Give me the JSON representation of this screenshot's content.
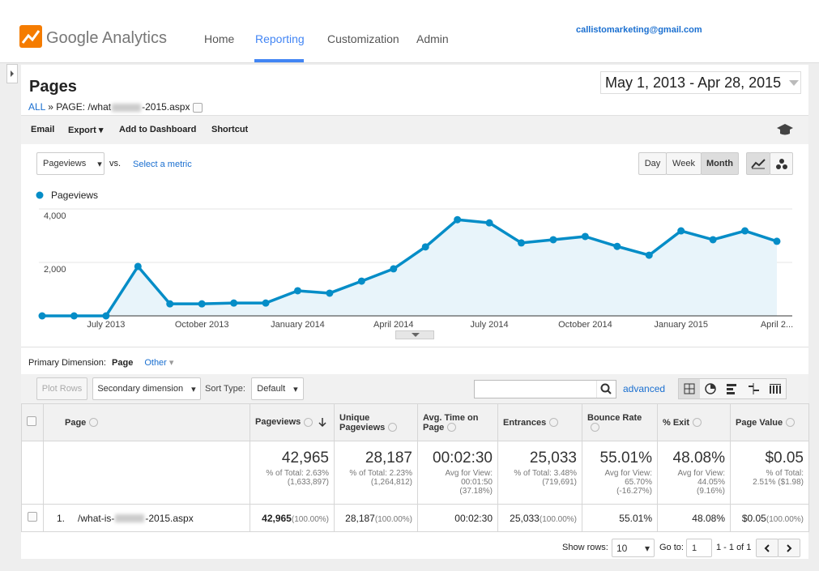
{
  "header": {
    "logo_text": "Google Analytics",
    "nav": [
      "Home",
      "Reporting",
      "Customization",
      "Admin"
    ],
    "account_email": "callistomarketing@gmail.com"
  },
  "report": {
    "title": "Pages",
    "breadcrumb": [
      "ALL",
      "»",
      "PAGE: /what",
      "-2015.aspx"
    ],
    "date_range": "May 1, 2013 - Apr 28, 2015",
    "toolbar": [
      "Email",
      "Export",
      "Add to Dashboard",
      "Shortcut"
    ]
  },
  "chart_controls": {
    "metric": "Pageviews",
    "vs": "vs.",
    "compare_metric": "Select a metric",
    "granularity": [
      "Day",
      "Week",
      "Month"
    ]
  },
  "chart_data": {
    "type": "line",
    "categories": [
      null,
      null,
      "July 2013",
      null,
      null,
      "October 2013",
      null,
      null,
      "January 2014",
      null,
      null,
      "April 2014",
      null,
      null,
      "July 2014",
      null,
      null,
      "October 2014",
      null,
      null,
      "January 2015",
      null,
      null,
      "April 2..."
    ],
    "series": [
      {
        "name": "Pageviews",
        "color": "#058dc7",
        "values": [
          0,
          0,
          0,
          1850,
          450,
          450,
          480,
          480,
          940,
          850,
          1300,
          1760,
          2580,
          3600,
          3480,
          2730,
          2850,
          2970,
          2600,
          2270,
          3180,
          2850,
          3180,
          2790
        ]
      }
    ],
    "ylim": [
      0,
      4000
    ],
    "yticks": [
      {
        "value": 2000,
        "label": "2,000"
      },
      {
        "value": 4000,
        "label": "4,000"
      }
    ],
    "grid": true
  },
  "table_controls": {
    "primary_dimension_label": "Primary Dimension:",
    "primary_dimension": "Page",
    "other": "Other",
    "plot_rows": "Plot Rows",
    "secondary_dimension": "Secondary dimension",
    "sort_type_label": "Sort Type:",
    "sort_type": "Default",
    "advanced": "advanced"
  },
  "table": {
    "columns": [
      "Page",
      "Pageviews",
      "Unique Pageviews",
      "Avg. Time on Page",
      "Entrances",
      "Bounce Rate",
      "% Exit",
      "Page Value"
    ],
    "totals": [
      [
        "42,965",
        "% of Total: 2.63%",
        "(1,633,897)"
      ],
      [
        "28,187",
        "% of Total: 2.23%",
        "(1,264,812)"
      ],
      [
        "00:02:30",
        "Avg for View:",
        "00:01:50",
        "(37.18%)"
      ],
      [
        "25,033",
        "% of Total: 3.48%",
        "(719,691)"
      ],
      [
        "55.01%",
        "Avg for View:",
        "65.70%",
        "(-16.27%)"
      ],
      [
        "48.08%",
        "Avg for View:",
        "44.05%",
        "(9.16%)"
      ],
      [
        "$0.05",
        "% of Total:",
        "2.51% ($1.98)"
      ]
    ],
    "rows": [
      {
        "index": "1.",
        "page_start": "/what-is-",
        "page_end": "-2015.aspx",
        "cells": [
          [
            "42,965",
            "(100.00%)"
          ],
          [
            "28,187",
            "(100.00%)"
          ],
          [
            "00:02:30"
          ],
          [
            "25,033",
            "(100.00%)"
          ],
          [
            "55.01%"
          ],
          [
            "48.08%"
          ],
          [
            "$0.05",
            "(100.00%)"
          ]
        ]
      }
    ]
  },
  "pagination": {
    "show_rows_label": "Show rows:",
    "show_rows": "10",
    "go_to_label": "Go to:",
    "go_to": "1",
    "range": "1 - 1 of 1"
  }
}
